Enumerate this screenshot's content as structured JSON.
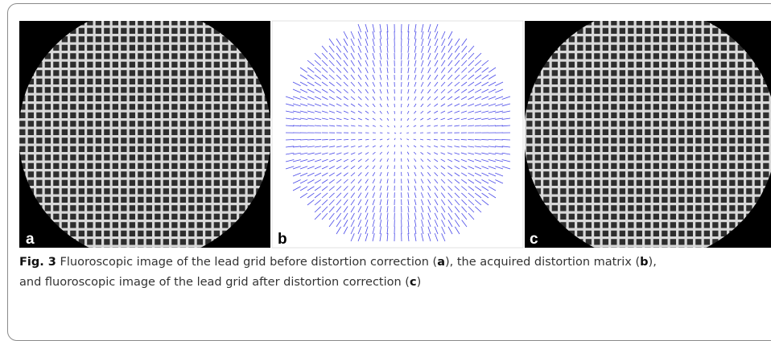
{
  "figure": {
    "panels": [
      {
        "label": "a"
      },
      {
        "label": "b"
      },
      {
        "label": "c"
      }
    ],
    "caption": {
      "segments": [
        {
          "text": "Fig. 3",
          "bold": true
        },
        {
          "text": " Fluoroscopic image of the lead grid before distortion correction (",
          "bold": false
        },
        {
          "text": "a",
          "bold": true
        },
        {
          "text": "), the acquired distortion matrix (",
          "bold": false
        },
        {
          "text": "b",
          "bold": true
        },
        {
          "text": "),",
          "bold": false
        },
        {
          "text": "and fluoroscopic image of the lead grid after distortion correction (",
          "bold": false
        },
        {
          "text": "c",
          "bold": true
        },
        {
          "text": ")",
          "bold": false
        }
      ]
    }
  }
}
